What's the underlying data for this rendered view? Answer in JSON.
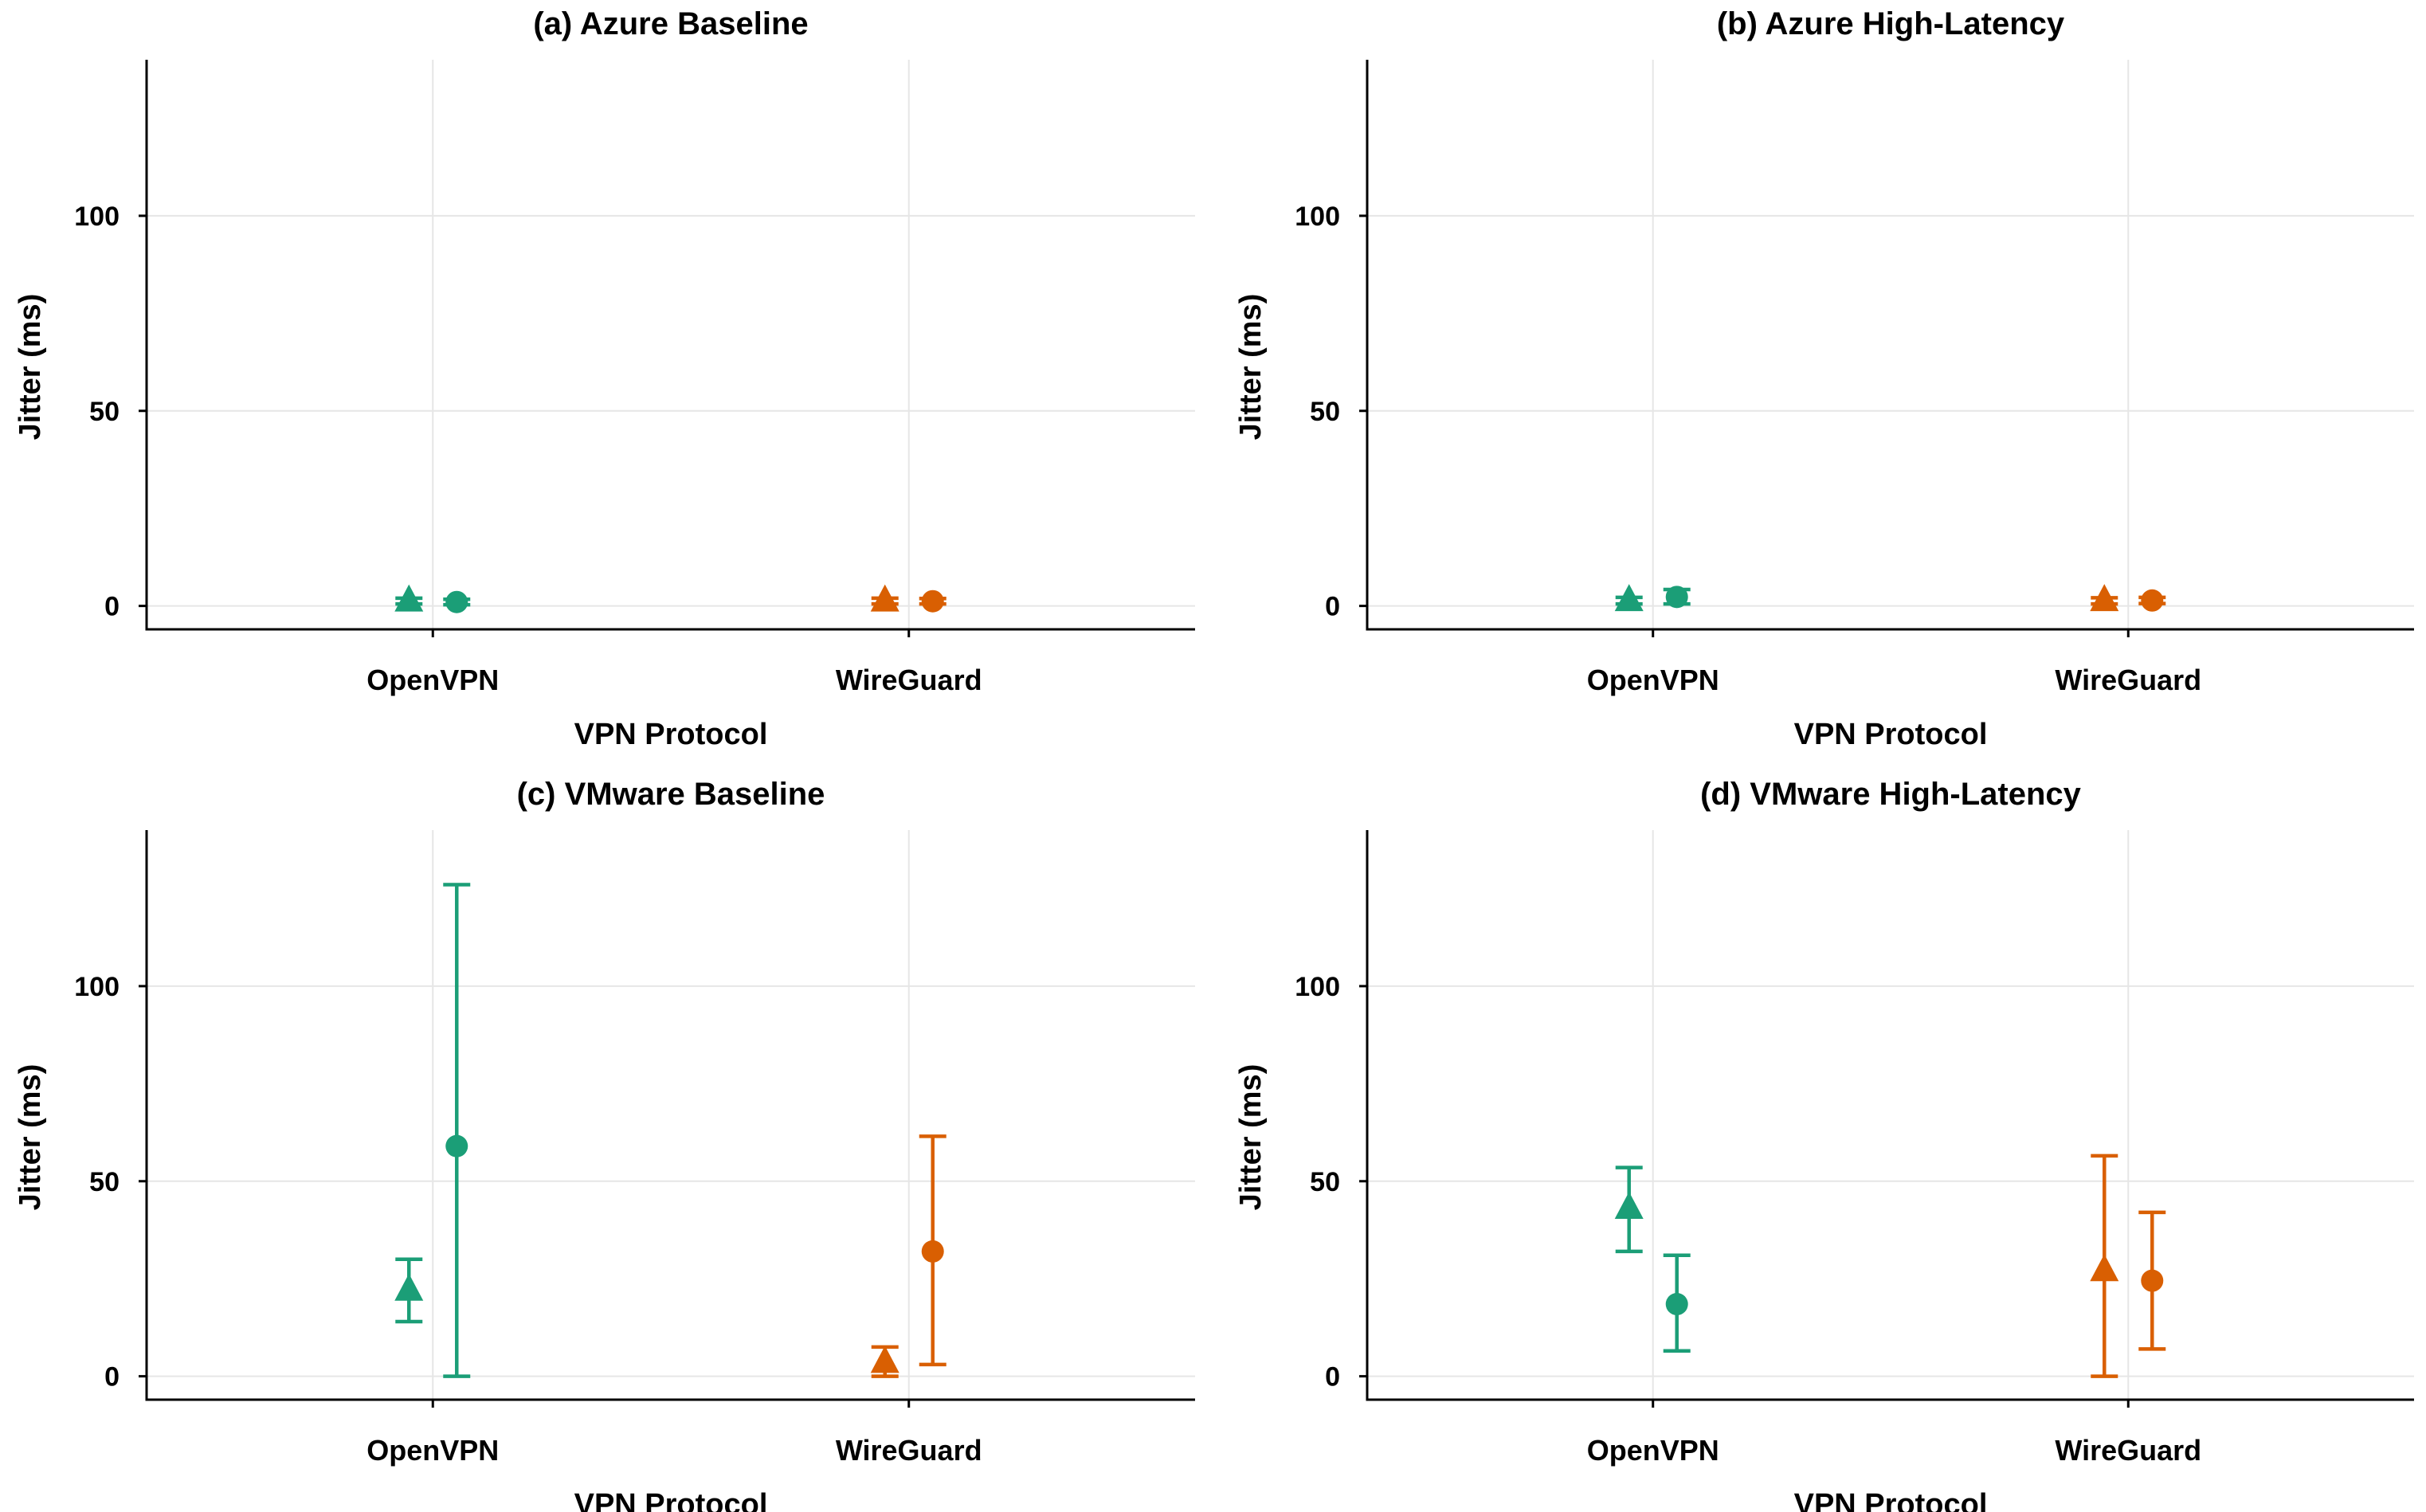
{
  "colors": {
    "openvpn": "#1b9e77",
    "wireguard": "#d95f02",
    "grid": "#e6e6e6",
    "axis": "#000000"
  },
  "chart_data": [
    {
      "type": "scatter",
      "title": "(a) Azure Baseline",
      "xlabel": "VPN Protocol",
      "ylabel": "Jitter (ms)",
      "ylim": [
        -6,
        140
      ],
      "yticks": [
        {
          "value": 0,
          "label": "0"
        },
        {
          "value": 50,
          "label": "50"
        },
        {
          "value": 100,
          "label": "100"
        }
      ],
      "categories": [
        "OpenVPN",
        "WireGuard"
      ],
      "series": [
        {
          "category": "OpenVPN",
          "marker": "triangle",
          "color": "#1b9e77",
          "mean": 1.2,
          "low": 0.5,
          "high": 2
        },
        {
          "category": "OpenVPN",
          "marker": "circle",
          "color": "#1b9e77",
          "mean": 1.0,
          "low": 0.3,
          "high": 1.7
        },
        {
          "category": "WireGuard",
          "marker": "triangle",
          "color": "#d95f02",
          "mean": 1.2,
          "low": 0.5,
          "high": 2
        },
        {
          "category": "WireGuard",
          "marker": "circle",
          "color": "#d95f02",
          "mean": 1.2,
          "low": 0.5,
          "high": 1.9
        }
      ]
    },
    {
      "type": "scatter",
      "title": "(b) Azure High-Latency",
      "xlabel": "VPN Protocol",
      "ylabel": "Jitter (ms)",
      "ylim": [
        -6,
        140
      ],
      "yticks": [
        {
          "value": 0,
          "label": "0"
        },
        {
          "value": 50,
          "label": "50"
        },
        {
          "value": 100,
          "label": "100"
        }
      ],
      "categories": [
        "OpenVPN",
        "WireGuard"
      ],
      "series": [
        {
          "category": "OpenVPN",
          "marker": "triangle",
          "color": "#1b9e77",
          "mean": 1.3,
          "low": 0.5,
          "high": 2.2
        },
        {
          "category": "OpenVPN",
          "marker": "circle",
          "color": "#1b9e77",
          "mean": 2.3,
          "low": 0.5,
          "high": 4.2
        },
        {
          "category": "WireGuard",
          "marker": "triangle",
          "color": "#d95f02",
          "mean": 1.3,
          "low": 0.5,
          "high": 2.1
        },
        {
          "category": "WireGuard",
          "marker": "circle",
          "color": "#d95f02",
          "mean": 1.4,
          "low": 0.6,
          "high": 2.2
        }
      ]
    },
    {
      "type": "scatter",
      "title": "(c) VMware Baseline",
      "xlabel": "VPN Protocol",
      "ylabel": "Jitter (ms)",
      "ylim": [
        -6,
        140
      ],
      "yticks": [
        {
          "value": 0,
          "label": "0"
        },
        {
          "value": 50,
          "label": "50"
        },
        {
          "value": 100,
          "label": "100"
        }
      ],
      "categories": [
        "OpenVPN",
        "WireGuard"
      ],
      "series": [
        {
          "category": "OpenVPN",
          "marker": "triangle",
          "color": "#1b9e77",
          "mean": 22,
          "low": 14,
          "high": 30
        },
        {
          "category": "OpenVPN",
          "marker": "circle",
          "color": "#1b9e77",
          "mean": 59,
          "low": 0,
          "high": 126
        },
        {
          "category": "WireGuard",
          "marker": "triangle",
          "color": "#d95f02",
          "mean": 3.5,
          "low": 0,
          "high": 7.5
        },
        {
          "category": "WireGuard",
          "marker": "circle",
          "color": "#d95f02",
          "mean": 32,
          "low": 3,
          "high": 61.5
        }
      ]
    },
    {
      "type": "scatter",
      "title": "(d) VMware High-Latency",
      "xlabel": "VPN Protocol",
      "ylabel": "Jitter (ms)",
      "ylim": [
        -6,
        140
      ],
      "yticks": [
        {
          "value": 0,
          "label": "0"
        },
        {
          "value": 50,
          "label": "50"
        },
        {
          "value": 100,
          "label": "100"
        }
      ],
      "categories": [
        "OpenVPN",
        "WireGuard"
      ],
      "series": [
        {
          "category": "OpenVPN",
          "marker": "triangle",
          "color": "#1b9e77",
          "mean": 43,
          "low": 32,
          "high": 53.5
        },
        {
          "category": "OpenVPN",
          "marker": "circle",
          "color": "#1b9e77",
          "mean": 18.5,
          "low": 6.5,
          "high": 31
        },
        {
          "category": "WireGuard",
          "marker": "triangle",
          "color": "#d95f02",
          "mean": 27,
          "low": 0,
          "high": 56.5
        },
        {
          "category": "WireGuard",
          "marker": "circle",
          "color": "#d95f02",
          "mean": 24.5,
          "low": 7,
          "high": 42
        }
      ]
    }
  ]
}
